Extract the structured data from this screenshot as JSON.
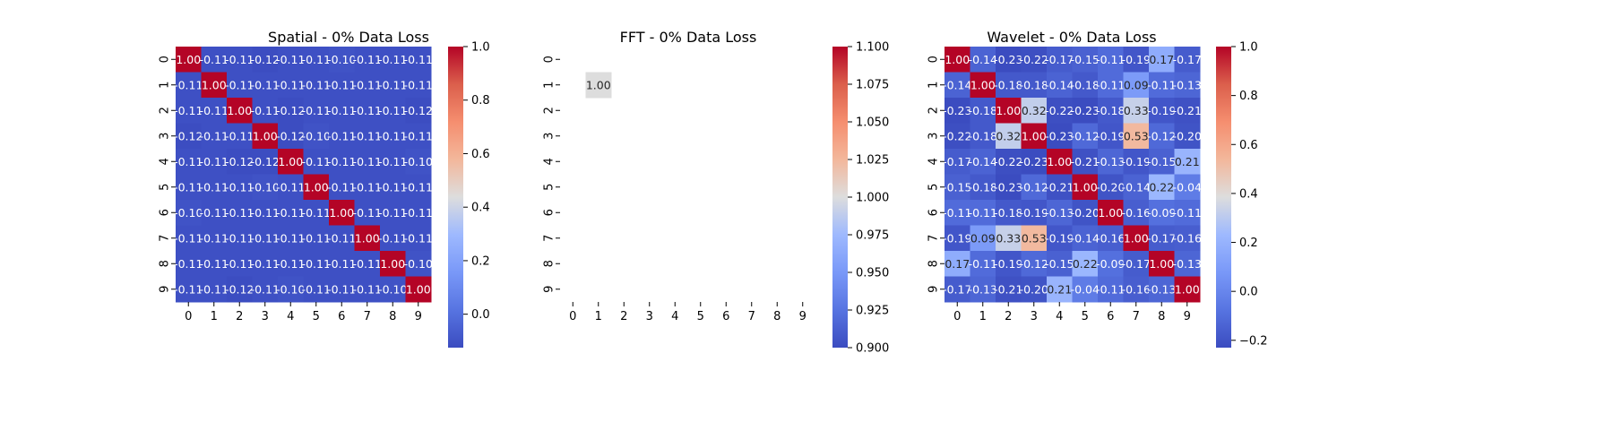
{
  "chart_data": [
    {
      "type": "heatmap",
      "title": "Spatial - 0% Data Loss",
      "x_categories": [
        "0",
        "1",
        "2",
        "3",
        "4",
        "5",
        "6",
        "7",
        "8",
        "9"
      ],
      "y_categories": [
        "0",
        "1",
        "2",
        "3",
        "4",
        "5",
        "6",
        "7",
        "8",
        "9"
      ],
      "values": [
        [
          1.0,
          -0.11,
          -0.11,
          -0.12,
          -0.11,
          -0.11,
          -0.1,
          -0.11,
          -0.11,
          -0.11
        ],
        [
          -0.11,
          1.0,
          -0.11,
          -0.11,
          -0.11,
          -0.11,
          -0.11,
          -0.11,
          -0.11,
          -0.11
        ],
        [
          -0.11,
          -0.11,
          1.0,
          -0.11,
          -0.12,
          -0.11,
          -0.11,
          -0.11,
          -0.11,
          -0.12
        ],
        [
          -0.12,
          -0.11,
          -0.11,
          1.0,
          -0.12,
          -0.1,
          -0.11,
          -0.11,
          -0.11,
          -0.11
        ],
        [
          -0.11,
          -0.11,
          -0.12,
          -0.12,
          1.0,
          -0.11,
          -0.11,
          -0.11,
          -0.11,
          -0.1
        ],
        [
          -0.11,
          -0.11,
          -0.11,
          -0.1,
          -0.11,
          1.0,
          -0.11,
          -0.11,
          -0.11,
          -0.11
        ],
        [
          -0.1,
          -0.11,
          -0.11,
          -0.11,
          -0.11,
          -0.11,
          1.0,
          -0.11,
          -0.11,
          -0.11
        ],
        [
          -0.11,
          -0.11,
          -0.11,
          -0.11,
          -0.11,
          -0.11,
          -0.11,
          1.0,
          -0.11,
          -0.11
        ],
        [
          -0.11,
          -0.11,
          -0.11,
          -0.11,
          -0.11,
          -0.11,
          -0.11,
          -0.11,
          1.0,
          -0.1
        ],
        [
          -0.11,
          -0.11,
          -0.12,
          -0.11,
          -0.1,
          -0.11,
          -0.11,
          -0.11,
          -0.1,
          1.0
        ]
      ],
      "colormap": "coolwarm",
      "vmin": -0.125,
      "vmax": 1.0,
      "colorbar_ticks": [
        "0.0",
        "0.2",
        "0.4",
        "0.6",
        "0.8",
        "1.0"
      ],
      "colorbar_tick_values": [
        0.0,
        0.2,
        0.4,
        0.6,
        0.8,
        1.0
      ]
    },
    {
      "type": "heatmap",
      "title": "FFT - 0% Data Loss",
      "x_categories": [
        "0",
        "1",
        "2",
        "3",
        "4",
        "5",
        "6",
        "7",
        "8",
        "9"
      ],
      "y_categories": [
        "0",
        "1",
        "2",
        "3",
        "4",
        "5",
        "6",
        "7",
        "8",
        "9"
      ],
      "values": [
        [
          null,
          null,
          null,
          null,
          null,
          null,
          null,
          null,
          null,
          null
        ],
        [
          null,
          1.0,
          null,
          null,
          null,
          null,
          null,
          null,
          null,
          null
        ],
        [
          null,
          null,
          null,
          null,
          null,
          null,
          null,
          null,
          null,
          null
        ],
        [
          null,
          null,
          null,
          null,
          null,
          null,
          null,
          null,
          null,
          null
        ],
        [
          null,
          null,
          null,
          null,
          null,
          null,
          null,
          null,
          null,
          null
        ],
        [
          null,
          null,
          null,
          null,
          null,
          null,
          null,
          null,
          null,
          null
        ],
        [
          null,
          null,
          null,
          null,
          null,
          null,
          null,
          null,
          null,
          null
        ],
        [
          null,
          null,
          null,
          null,
          null,
          null,
          null,
          null,
          null,
          null
        ],
        [
          null,
          null,
          null,
          null,
          null,
          null,
          null,
          null,
          null,
          null
        ],
        [
          null,
          null,
          null,
          null,
          null,
          null,
          null,
          null,
          null,
          null
        ]
      ],
      "colormap": "coolwarm",
      "vmin": 0.9,
      "vmax": 1.1,
      "colorbar_ticks": [
        "0.900",
        "0.925",
        "0.950",
        "0.975",
        "1.000",
        "1.025",
        "1.050",
        "1.075",
        "1.100"
      ],
      "colorbar_tick_values": [
        0.9,
        0.925,
        0.95,
        0.975,
        1.0,
        1.025,
        1.05,
        1.075,
        1.1
      ]
    },
    {
      "type": "heatmap",
      "title": "Wavelet - 0% Data Loss",
      "x_categories": [
        "0",
        "1",
        "2",
        "3",
        "4",
        "5",
        "6",
        "7",
        "8",
        "9"
      ],
      "y_categories": [
        "0",
        "1",
        "2",
        "3",
        "4",
        "5",
        "6",
        "7",
        "8",
        "9"
      ],
      "values": [
        [
          1.0,
          -0.14,
          -0.23,
          -0.22,
          -0.17,
          -0.15,
          -0.11,
          -0.19,
          0.17,
          -0.17
        ],
        [
          -0.14,
          1.0,
          -0.18,
          -0.18,
          -0.14,
          -0.18,
          -0.11,
          0.09,
          -0.11,
          -0.13
        ],
        [
          -0.23,
          -0.18,
          1.0,
          0.32,
          -0.22,
          -0.23,
          -0.18,
          0.33,
          -0.19,
          -0.21
        ],
        [
          -0.22,
          -0.18,
          0.32,
          1.0,
          -0.23,
          -0.12,
          -0.19,
          0.53,
          -0.12,
          -0.2
        ],
        [
          -0.17,
          -0.14,
          -0.22,
          -0.23,
          1.0,
          -0.21,
          -0.13,
          -0.19,
          -0.15,
          0.21
        ],
        [
          -0.15,
          -0.18,
          -0.23,
          -0.12,
          -0.21,
          1.0,
          -0.2,
          -0.14,
          0.22,
          -0.04
        ],
        [
          -0.11,
          -0.11,
          -0.18,
          -0.19,
          -0.13,
          -0.2,
          1.0,
          -0.16,
          -0.09,
          -0.11
        ],
        [
          -0.19,
          0.09,
          0.33,
          0.53,
          -0.19,
          -0.14,
          -0.16,
          1.0,
          -0.17,
          -0.16
        ],
        [
          0.17,
          -0.11,
          -0.19,
          -0.12,
          -0.15,
          0.22,
          -0.09,
          -0.17,
          1.0,
          -0.13
        ],
        [
          -0.17,
          -0.13,
          -0.21,
          -0.2,
          0.21,
          -0.04,
          -0.11,
          -0.16,
          -0.13,
          1.0
        ]
      ],
      "colormap": "coolwarm",
      "vmin": -0.23,
      "vmax": 1.0,
      "colorbar_ticks": [
        "−0.2",
        "0.0",
        "0.2",
        "0.4",
        "0.6",
        "0.8",
        "1.0"
      ],
      "colorbar_tick_values": [
        -0.2,
        0.0,
        0.2,
        0.4,
        0.6,
        0.8,
        1.0
      ]
    }
  ]
}
